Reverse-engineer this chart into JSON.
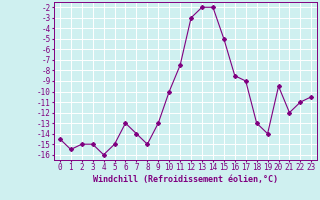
{
  "x": [
    0,
    1,
    2,
    3,
    4,
    5,
    6,
    7,
    8,
    9,
    10,
    11,
    12,
    13,
    14,
    15,
    16,
    17,
    18,
    19,
    20,
    21,
    22,
    23
  ],
  "y": [
    -14.5,
    -15.5,
    -15.0,
    -15.0,
    -16.0,
    -15.0,
    -13.0,
    -14.0,
    -15.0,
    -13.0,
    -10.0,
    -7.5,
    -3.0,
    -2.0,
    -2.0,
    -5.0,
    -8.5,
    -9.0,
    -13.0,
    -14.0,
    -9.5,
    -12.0,
    -11.0,
    -10.5
  ],
  "ylim": [
    -16.5,
    -1.5
  ],
  "xlim": [
    -0.5,
    23.5
  ],
  "yticks": [
    -16,
    -15,
    -14,
    -13,
    -12,
    -11,
    -10,
    -9,
    -8,
    -7,
    -6,
    -5,
    -4,
    -3,
    -2
  ],
  "xticks": [
    0,
    1,
    2,
    3,
    4,
    5,
    6,
    7,
    8,
    9,
    10,
    11,
    12,
    13,
    14,
    15,
    16,
    17,
    18,
    19,
    20,
    21,
    22,
    23
  ],
  "xlabel": "Windchill (Refroidissement éolien,°C)",
  "line_color": "#800080",
  "marker": "D",
  "marker_size": 2,
  "bg_color": "#cff0f0",
  "grid_color": "#ffffff",
  "label_color": "#800080",
  "tick_color": "#800080",
  "font_size": 5.5,
  "xlabel_fontsize": 6,
  "line_width": 0.8
}
